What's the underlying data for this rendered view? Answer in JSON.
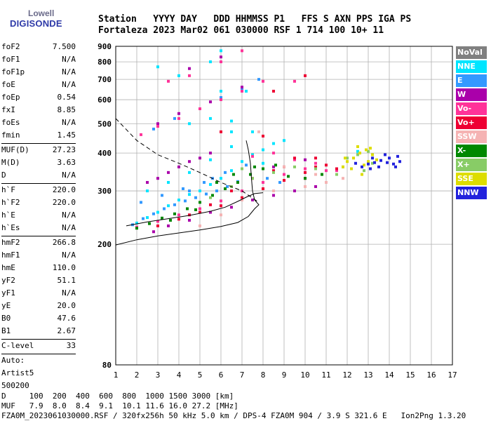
{
  "logo": {
    "line1": "Lowell",
    "line2": "DIGISONDE"
  },
  "header": {
    "row1": [
      "Station",
      "YYYY DAY",
      "DDD HHMMSS P1",
      "FFS S AXN PPS IGA PS"
    ],
    "row2": [
      "Fortaleza",
      "2023 Mar02",
      "061 030000 RSF",
      "1 714 100 10+ 11"
    ]
  },
  "params": {
    "group1": [
      {
        "label": "foF2",
        "value": "7.500"
      },
      {
        "label": "foF1",
        "value": "N/A"
      },
      {
        "label": "foF1p",
        "value": "N/A"
      },
      {
        "label": "foE",
        "value": "N/A"
      },
      {
        "label": "foEp",
        "value": "0.54"
      },
      {
        "label": "fxI",
        "value": "8.85"
      },
      {
        "label": "foEs",
        "value": "N/A"
      },
      {
        "label": "fmin",
        "value": "1.45"
      }
    ],
    "group2": [
      {
        "label": "MUF(D)",
        "value": "27.23"
      },
      {
        "label": "M(D)",
        "value": "3.63"
      },
      {
        "label": "D",
        "value": "N/A"
      }
    ],
    "group3": [
      {
        "label": "h`F",
        "value": "220.0"
      },
      {
        "label": "h`F2",
        "value": "220.0"
      },
      {
        "label": "h`E",
        "value": "N/A"
      },
      {
        "label": "h`Es",
        "value": "N/A"
      }
    ],
    "group4": [
      {
        "label": "hmF2",
        "value": "266.8"
      },
      {
        "label": "hmF1",
        "value": "N/A"
      },
      {
        "label": "hmE",
        "value": "110.0"
      },
      {
        "label": "yF2",
        "value": "51.1"
      },
      {
        "label": "yF1",
        "value": "N/A"
      },
      {
        "label": "yE",
        "value": "20.0"
      },
      {
        "label": "B0",
        "value": "47.6"
      },
      {
        "label": "B1",
        "value": "2.67"
      }
    ],
    "group5": [
      {
        "label": "C-level",
        "value": "33"
      }
    ],
    "auto": {
      "line1": "Auto:",
      "line2": "Artist5",
      "line3": "500200"
    }
  },
  "legend": [
    {
      "label": "NoVal",
      "color": "#808080"
    },
    {
      "label": "NNE",
      "color": "#00e5ff"
    },
    {
      "label": "E",
      "color": "#3399ff"
    },
    {
      "label": "W",
      "color": "#aa00aa"
    },
    {
      "label": "Vo-",
      "color": "#ff3399"
    },
    {
      "label": "Vo+",
      "color": "#ee0033"
    },
    {
      "label": "SSW",
      "color": "#f5b3b3"
    },
    {
      "label": "X-",
      "color": "#008800"
    },
    {
      "label": "X+",
      "color": "#88cc66"
    },
    {
      "label": "SSE",
      "color": "#dddd00"
    },
    {
      "label": "NNW",
      "color": "#2222dd"
    }
  ],
  "footer": {
    "d_label": "D",
    "d_values": [
      "100",
      "200",
      "400",
      "600",
      "800",
      "1000",
      "1500",
      "3000",
      "[km]"
    ],
    "muf_label": "MUF",
    "muf_values": [
      "7.9",
      "8.0",
      "8.4",
      "9.1",
      "10.1",
      "11.6",
      "16.0",
      "27.2",
      "[MHz]"
    ],
    "line3": "FZA0M_2023061030000.RSF / 320fx256h 50 kHz 5.0 km / DPS-4 FZA0M 904 / 3.9 S 321.6 E   Ion2Png 1.3.20"
  },
  "chart_data": {
    "type": "scatter",
    "title": "",
    "xlabel": "",
    "ylabel": "",
    "xlim": [
      1,
      17
    ],
    "ylim": [
      80,
      900
    ],
    "y_scale": "log",
    "x_ticks": [
      1,
      2,
      3,
      4,
      5,
      6,
      7,
      8,
      9,
      10,
      11,
      12,
      13,
      14,
      15,
      16,
      17
    ],
    "y_ticks": [
      80,
      200,
      300,
      400,
      500,
      600,
      700,
      800,
      900
    ],
    "grid": true,
    "legend_position": "right",
    "series": [
      {
        "name": "NNE",
        "color": "#00e5ff",
        "points": [
          [
            2.0,
            235
          ],
          [
            2.5,
            245
          ],
          [
            3.0,
            255
          ],
          [
            3.5,
            268
          ],
          [
            4.0,
            280
          ],
          [
            4.5,
            292
          ],
          [
            5.0,
            300
          ],
          [
            5.5,
            315
          ],
          [
            6.0,
            330
          ],
          [
            6.5,
            350
          ],
          [
            7.0,
            375
          ],
          [
            7.5,
            395
          ],
          [
            8.0,
            410
          ],
          [
            8.5,
            430
          ],
          [
            9.0,
            440
          ],
          [
            2.5,
            300
          ],
          [
            3.5,
            320
          ],
          [
            4.5,
            345
          ],
          [
            5.5,
            380
          ],
          [
            6.5,
            420
          ],
          [
            7.5,
            470
          ],
          [
            6.5,
            470
          ],
          [
            6.5,
            510
          ],
          [
            4.5,
            500
          ],
          [
            5.5,
            520
          ],
          [
            6.0,
            640
          ],
          [
            4.0,
            720
          ],
          [
            5.5,
            800
          ],
          [
            7.2,
            640
          ],
          [
            12.5,
            405
          ],
          [
            8.0,
            370
          ],
          [
            3.0,
            770
          ],
          [
            6.0,
            870
          ]
        ]
      },
      {
        "name": "E",
        "color": "#3399ff",
        "points": [
          [
            1.8,
            232
          ],
          [
            2.3,
            243
          ],
          [
            2.8,
            252
          ],
          [
            3.3,
            262
          ],
          [
            3.8,
            270
          ],
          [
            4.3,
            278
          ],
          [
            4.8,
            285
          ],
          [
            5.3,
            293
          ],
          [
            5.8,
            300
          ],
          [
            6.3,
            310
          ],
          [
            6.8,
            322
          ],
          [
            2.2,
            275
          ],
          [
            3.2,
            290
          ],
          [
            4.2,
            305
          ],
          [
            5.2,
            320
          ],
          [
            6.2,
            345
          ],
          [
            7.2,
            365
          ],
          [
            8.2,
            330
          ],
          [
            8.8,
            320
          ],
          [
            3.8,
            520
          ],
          [
            5.0,
            560
          ],
          [
            6.0,
            610
          ],
          [
            7.0,
            650
          ],
          [
            7.8,
            700
          ],
          [
            2.8,
            480
          ],
          [
            4.5,
            300
          ],
          [
            5.6,
            330
          ]
        ]
      },
      {
        "name": "W",
        "color": "#aa00aa",
        "points": [
          [
            2.5,
            320
          ],
          [
            3.0,
            330
          ],
          [
            3.5,
            345
          ],
          [
            4.0,
            360
          ],
          [
            4.5,
            375
          ],
          [
            5.0,
            385
          ],
          [
            5.5,
            400
          ],
          [
            2.8,
            220
          ],
          [
            3.5,
            230
          ],
          [
            4.5,
            240
          ],
          [
            5.5,
            255
          ],
          [
            6.5,
            265
          ],
          [
            7.5,
            280
          ],
          [
            8.5,
            290
          ],
          [
            9.5,
            300
          ],
          [
            10.5,
            310
          ],
          [
            3.0,
            500
          ],
          [
            4.0,
            540
          ],
          [
            5.5,
            590
          ],
          [
            7.0,
            660
          ],
          [
            4.5,
            760
          ],
          [
            6.0,
            830
          ],
          [
            8.5,
            360
          ],
          [
            10.0,
            380
          ]
        ]
      },
      {
        "name": "Vo-",
        "color": "#ff3399",
        "points": [
          [
            2.0,
            228
          ],
          [
            3.0,
            238
          ],
          [
            4.0,
            250
          ],
          [
            5.0,
            262
          ],
          [
            6.0,
            278
          ],
          [
            7.0,
            300
          ],
          [
            8.0,
            320
          ],
          [
            9.0,
            340
          ],
          [
            10.0,
            355
          ],
          [
            11.0,
            350
          ],
          [
            8.5,
            400
          ],
          [
            9.5,
            380
          ],
          [
            10.5,
            370
          ],
          [
            7.5,
            390
          ],
          [
            2.2,
            460
          ],
          [
            3.0,
            490
          ],
          [
            4.0,
            520
          ],
          [
            5.0,
            560
          ],
          [
            6.0,
            600
          ],
          [
            7.0,
            640
          ],
          [
            8.0,
            690
          ],
          [
            9.5,
            690
          ],
          [
            4.5,
            720
          ],
          [
            6.0,
            800
          ],
          [
            3.5,
            690
          ],
          [
            7.0,
            870
          ],
          [
            11.5,
            350
          ]
        ]
      },
      {
        "name": "Vo+",
        "color": "#ee0033",
        "points": [
          [
            3.0,
            230
          ],
          [
            4.0,
            242
          ],
          [
            5.0,
            255
          ],
          [
            6.0,
            268
          ],
          [
            7.0,
            285
          ],
          [
            8.0,
            305
          ],
          [
            9.0,
            325
          ],
          [
            10.0,
            345
          ],
          [
            10.5,
            360
          ],
          [
            11.0,
            365
          ],
          [
            11.5,
            355
          ],
          [
            9.5,
            385
          ],
          [
            10.5,
            385
          ],
          [
            8.5,
            350
          ],
          [
            7.5,
            330
          ],
          [
            6.5,
            300
          ],
          [
            5.5,
            270
          ],
          [
            4.5,
            250
          ],
          [
            8.0,
            455
          ],
          [
            10.0,
            720
          ],
          [
            8.5,
            640
          ],
          [
            6.0,
            470
          ],
          [
            9.0,
            360
          ],
          [
            10.0,
            330
          ]
        ]
      },
      {
        "name": "SSW",
        "color": "#f5b3b3",
        "points": [
          [
            7.0,
            280
          ],
          [
            8.5,
            300
          ],
          [
            10.0,
            310
          ],
          [
            11.0,
            320
          ],
          [
            6.0,
            250
          ],
          [
            9.0,
            360
          ],
          [
            10.5,
            340
          ],
          [
            5.0,
            230
          ],
          [
            11.8,
            330
          ],
          [
            7.8,
            470
          ]
        ]
      },
      {
        "name": "X-",
        "color": "#008800",
        "points": [
          [
            2.0,
            226
          ],
          [
            2.6,
            234
          ],
          [
            3.2,
            244
          ],
          [
            3.8,
            252
          ],
          [
            4.4,
            262
          ],
          [
            5.0,
            275
          ],
          [
            5.6,
            290
          ],
          [
            6.2,
            305
          ],
          [
            6.8,
            320
          ],
          [
            7.4,
            340
          ],
          [
            8.0,
            355
          ],
          [
            8.6,
            365
          ],
          [
            9.2,
            335
          ],
          [
            10.0,
            330
          ],
          [
            10.8,
            340
          ],
          [
            7.6,
            360
          ],
          [
            6.6,
            340
          ],
          [
            5.8,
            320
          ],
          [
            3.6,
            240
          ],
          [
            4.8,
            260
          ]
        ]
      },
      {
        "name": "X+",
        "color": "#88cc66",
        "points": [
          [
            5.5,
            285
          ],
          [
            6.5,
            310
          ],
          [
            7.5,
            330
          ],
          [
            8.5,
            345
          ],
          [
            9.5,
            360
          ],
          [
            10.5,
            355
          ],
          [
            11.5,
            340
          ],
          [
            12.0,
            385
          ],
          [
            12.5,
            395
          ],
          [
            13.0,
            405
          ],
          [
            13.2,
            370
          ],
          [
            12.8,
            350
          ],
          [
            11.8,
            360
          ],
          [
            7.0,
            355
          ]
        ]
      },
      {
        "name": "SSE",
        "color": "#dddd00",
        "points": [
          [
            11.8,
            360
          ],
          [
            12.0,
            375
          ],
          [
            12.3,
            385
          ],
          [
            12.6,
            400
          ],
          [
            12.9,
            410
          ],
          [
            13.2,
            395
          ],
          [
            13.4,
            380
          ],
          [
            12.2,
            355
          ],
          [
            12.8,
            365
          ],
          [
            13.0,
            375
          ],
          [
            11.9,
            385
          ],
          [
            12.5,
            420
          ],
          [
            13.1,
            415
          ],
          [
            12.7,
            340
          ]
        ]
      },
      {
        "name": "NNW",
        "color": "#2222dd",
        "points": [
          [
            12.7,
            360
          ],
          [
            13.0,
            368
          ],
          [
            13.3,
            372
          ],
          [
            13.6,
            378
          ],
          [
            13.9,
            372
          ],
          [
            14.2,
            368
          ],
          [
            14.5,
            375
          ],
          [
            13.5,
            360
          ],
          [
            14.0,
            385
          ],
          [
            14.3,
            360
          ],
          [
            13.8,
            395
          ],
          [
            12.4,
            370
          ],
          [
            13.2,
            385
          ],
          [
            14.4,
            390
          ],
          [
            13.1,
            355
          ]
        ]
      }
    ],
    "curves": [
      {
        "name": "profile",
        "style": "solid",
        "points": [
          [
            1.0,
            199
          ],
          [
            2.0,
            207
          ],
          [
            3.0,
            213
          ],
          [
            4.0,
            218
          ],
          [
            5.0,
            223
          ],
          [
            6.0,
            229
          ],
          [
            6.8,
            236
          ],
          [
            7.3,
            247
          ],
          [
            7.6,
            262
          ],
          [
            7.8,
            270
          ],
          [
            7.6,
            280
          ],
          [
            7.5,
            300
          ],
          [
            7.45,
            330
          ],
          [
            7.4,
            370
          ],
          [
            7.3,
            410
          ],
          [
            7.2,
            440
          ]
        ]
      },
      {
        "name": "muf-track",
        "style": "solid",
        "points": [
          [
            1.5,
            230
          ],
          [
            2.5,
            237
          ],
          [
            3.5,
            243
          ],
          [
            4.5,
            249
          ],
          [
            5.5,
            257
          ],
          [
            6.2,
            265
          ],
          [
            6.8,
            277
          ],
          [
            7.2,
            286
          ],
          [
            7.6,
            294
          ],
          [
            8.0,
            296
          ]
        ]
      },
      {
        "name": "valley",
        "style": "dashed",
        "points": [
          [
            1.0,
            520
          ],
          [
            2.0,
            440
          ],
          [
            3.0,
            395
          ],
          [
            4.0,
            370
          ],
          [
            5.0,
            345
          ],
          [
            6.0,
            320
          ],
          [
            7.0,
            300
          ],
          [
            7.8,
            275
          ]
        ]
      }
    ]
  }
}
